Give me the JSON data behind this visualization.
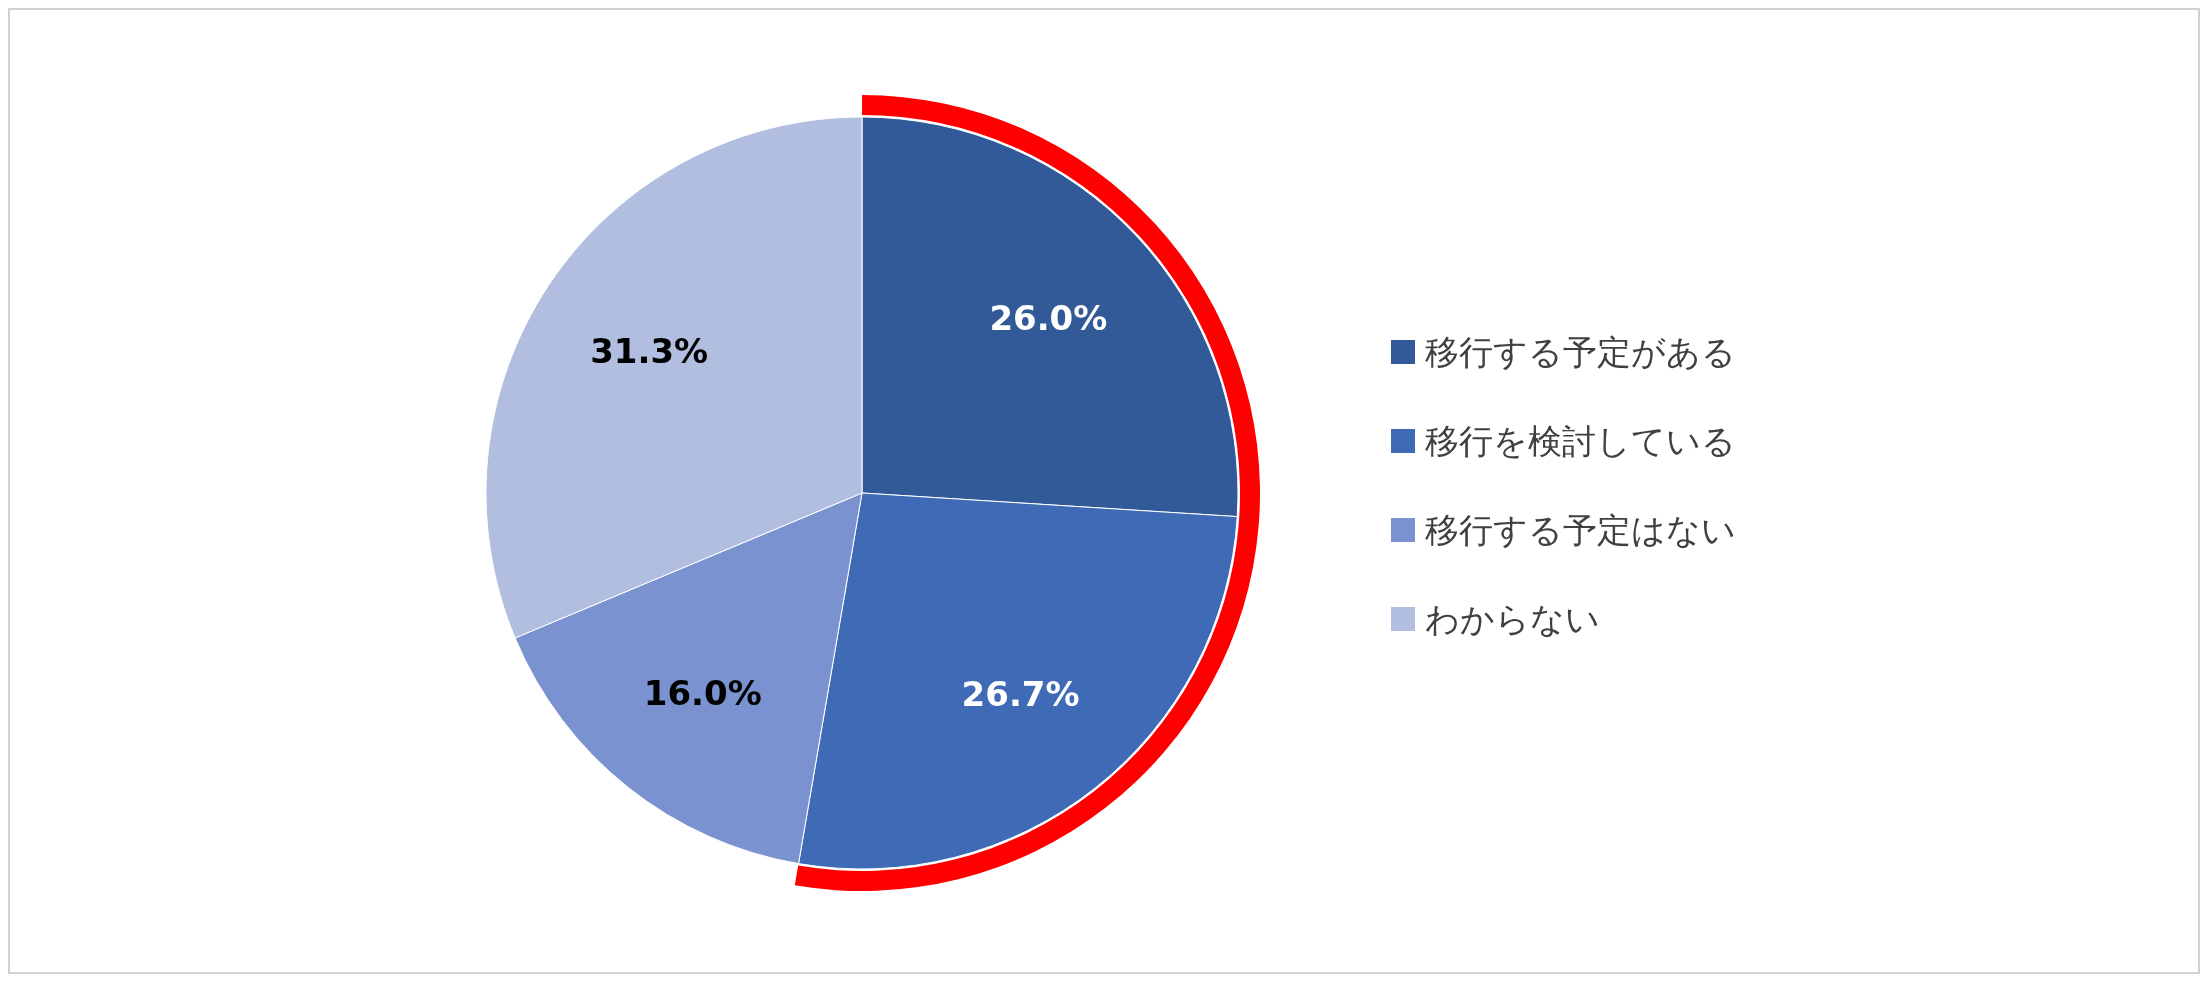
{
  "chart_data": {
    "type": "pie",
    "categories": [
      "移行する予定がある",
      "移行を検討している",
      "移行する予定はない",
      "わからない"
    ],
    "values": [
      26.0,
      26.7,
      16.0,
      31.3
    ],
    "colors": [
      "#335a98",
      "#3f6ab6",
      "#7a93d0",
      "#b2bedf"
    ],
    "value_labels": [
      "26.0%",
      "26.7%",
      "16.0%",
      "31.3%"
    ],
    "legend": "right"
  }
}
